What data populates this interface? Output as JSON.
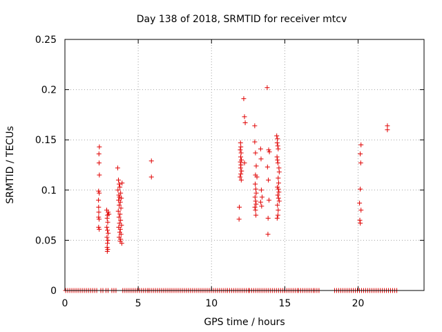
{
  "chart_data": {
    "type": "scatter",
    "title": "Day 138 of 2018, SRMTID for receiver mtcv",
    "xlabel": "GPS time / hours",
    "ylabel": "SRMTID / TECUs",
    "xlim": [
      0,
      24.5
    ],
    "ylim": [
      0,
      0.25
    ],
    "xticks": [
      0,
      5,
      10,
      15,
      20
    ],
    "xtick_labels": [
      "0",
      "5",
      "10",
      "15",
      "20"
    ],
    "yticks": [
      0,
      0.05,
      0.1,
      0.15,
      0.2,
      0.25
    ],
    "ytick_labels": [
      "0",
      "0.05",
      "0.1",
      "0.15",
      "0.2",
      "0.25"
    ],
    "grid": true,
    "marker": "+",
    "color": "#e00000",
    "baseline_segments": [
      [
        0.05,
        2.25
      ],
      [
        2.45,
        2.65
      ],
      [
        2.8,
        3.05
      ],
      [
        3.2,
        3.55
      ],
      [
        3.95,
        5.75
      ],
      [
        5.75,
        7.2
      ],
      [
        7.3,
        11.1
      ],
      [
        11.1,
        12.6
      ],
      [
        12.6,
        13.3
      ],
      [
        13.3,
        15.0
      ],
      [
        15.0,
        15.95
      ],
      [
        15.95,
        17.0
      ],
      [
        17.05,
        17.35
      ],
      [
        18.4,
        22.7
      ]
    ],
    "points": [
      {
        "x": 2.32,
        "y": 0.136
      },
      {
        "x": 2.33,
        "y": 0.127
      },
      {
        "x": 2.35,
        "y": 0.143
      },
      {
        "x": 2.35,
        "y": 0.115
      },
      {
        "x": 2.3,
        "y": 0.099
      },
      {
        "x": 2.34,
        "y": 0.097
      },
      {
        "x": 2.29,
        "y": 0.09
      },
      {
        "x": 2.3,
        "y": 0.083
      },
      {
        "x": 2.31,
        "y": 0.078
      },
      {
        "x": 2.3,
        "y": 0.073
      },
      {
        "x": 2.33,
        "y": 0.071
      },
      {
        "x": 2.3,
        "y": 0.063
      },
      {
        "x": 2.34,
        "y": 0.061
      },
      {
        "x": 2.85,
        "y": 0.08
      },
      {
        "x": 2.95,
        "y": 0.078
      },
      {
        "x": 2.9,
        "y": 0.075
      },
      {
        "x": 2.88,
        "y": 0.072
      },
      {
        "x": 2.92,
        "y": 0.068
      },
      {
        "x": 2.86,
        "y": 0.063
      },
      {
        "x": 2.9,
        "y": 0.06
      },
      {
        "x": 2.95,
        "y": 0.057
      },
      {
        "x": 2.87,
        "y": 0.053
      },
      {
        "x": 2.93,
        "y": 0.05
      },
      {
        "x": 2.9,
        "y": 0.047
      },
      {
        "x": 2.88,
        "y": 0.043
      },
      {
        "x": 2.92,
        "y": 0.041
      },
      {
        "x": 2.89,
        "y": 0.039
      },
      {
        "x": 3.0,
        "y": 0.076
      },
      {
        "x": 3.6,
        "y": 0.122
      },
      {
        "x": 3.65,
        "y": 0.11
      },
      {
        "x": 3.7,
        "y": 0.106
      },
      {
        "x": 3.9,
        "y": 0.107
      },
      {
        "x": 3.75,
        "y": 0.103
      },
      {
        "x": 3.62,
        "y": 0.1
      },
      {
        "x": 3.8,
        "y": 0.097
      },
      {
        "x": 3.68,
        "y": 0.095
      },
      {
        "x": 3.72,
        "y": 0.093
      },
      {
        "x": 3.85,
        "y": 0.092
      },
      {
        "x": 3.66,
        "y": 0.09
      },
      {
        "x": 3.78,
        "y": 0.088
      },
      {
        "x": 3.7,
        "y": 0.085
      },
      {
        "x": 3.82,
        "y": 0.082
      },
      {
        "x": 3.64,
        "y": 0.079
      },
      {
        "x": 3.76,
        "y": 0.076
      },
      {
        "x": 3.69,
        "y": 0.073
      },
      {
        "x": 3.8,
        "y": 0.07
      },
      {
        "x": 3.72,
        "y": 0.067
      },
      {
        "x": 3.86,
        "y": 0.065
      },
      {
        "x": 3.67,
        "y": 0.063
      },
      {
        "x": 3.78,
        "y": 0.061
      },
      {
        "x": 3.74,
        "y": 0.058
      },
      {
        "x": 3.83,
        "y": 0.056
      },
      {
        "x": 3.7,
        "y": 0.053
      },
      {
        "x": 3.8,
        "y": 0.051
      },
      {
        "x": 3.77,
        "y": 0.049
      },
      {
        "x": 3.88,
        "y": 0.047
      },
      {
        "x": 5.9,
        "y": 0.129
      },
      {
        "x": 5.9,
        "y": 0.113
      },
      {
        "x": 11.98,
        "y": 0.147
      },
      {
        "x": 12.0,
        "y": 0.143
      },
      {
        "x": 11.96,
        "y": 0.14
      },
      {
        "x": 12.02,
        "y": 0.137
      },
      {
        "x": 11.99,
        "y": 0.133
      },
      {
        "x": 12.04,
        "y": 0.13
      },
      {
        "x": 11.97,
        "y": 0.128
      },
      {
        "x": 12.25,
        "y": 0.127
      },
      {
        "x": 12.01,
        "y": 0.125
      },
      {
        "x": 11.98,
        "y": 0.122
      },
      {
        "x": 12.05,
        "y": 0.119
      },
      {
        "x": 12.0,
        "y": 0.116
      },
      {
        "x": 11.95,
        "y": 0.113
      },
      {
        "x": 12.03,
        "y": 0.11
      },
      {
        "x": 11.9,
        "y": 0.083
      },
      {
        "x": 11.88,
        "y": 0.071
      },
      {
        "x": 12.2,
        "y": 0.191
      },
      {
        "x": 12.25,
        "y": 0.173
      },
      {
        "x": 12.3,
        "y": 0.167
      },
      {
        "x": 12.95,
        "y": 0.164
      },
      {
        "x": 12.95,
        "y": 0.148
      },
      {
        "x": 13.0,
        "y": 0.137
      },
      {
        "x": 13.05,
        "y": 0.124
      },
      {
        "x": 13.0,
        "y": 0.115
      },
      {
        "x": 12.98,
        "y": 0.106
      },
      {
        "x": 13.02,
        "y": 0.101
      },
      {
        "x": 13.05,
        "y": 0.097
      },
      {
        "x": 12.97,
        "y": 0.093
      },
      {
        "x": 13.01,
        "y": 0.089
      },
      {
        "x": 13.04,
        "y": 0.086
      },
      {
        "x": 12.96,
        "y": 0.083
      },
      {
        "x": 13.0,
        "y": 0.08
      },
      {
        "x": 13.03,
        "y": 0.075
      },
      {
        "x": 13.1,
        "y": 0.113
      },
      {
        "x": 13.35,
        "y": 0.141
      },
      {
        "x": 13.38,
        "y": 0.131
      },
      {
        "x": 13.4,
        "y": 0.1
      },
      {
        "x": 13.45,
        "y": 0.093
      },
      {
        "x": 13.35,
        "y": 0.088
      },
      {
        "x": 13.42,
        "y": 0.084
      },
      {
        "x": 13.8,
        "y": 0.202
      },
      {
        "x": 13.85,
        "y": 0.056
      },
      {
        "x": 13.9,
        "y": 0.14
      },
      {
        "x": 13.95,
        "y": 0.138
      },
      {
        "x": 13.82,
        "y": 0.123
      },
      {
        "x": 13.88,
        "y": 0.11
      },
      {
        "x": 13.92,
        "y": 0.09
      },
      {
        "x": 13.86,
        "y": 0.072
      },
      {
        "x": 14.45,
        "y": 0.154
      },
      {
        "x": 14.5,
        "y": 0.151
      },
      {
        "x": 14.48,
        "y": 0.147
      },
      {
        "x": 14.52,
        "y": 0.144
      },
      {
        "x": 14.55,
        "y": 0.141
      },
      {
        "x": 14.47,
        "y": 0.133
      },
      {
        "x": 14.5,
        "y": 0.13
      },
      {
        "x": 14.53,
        "y": 0.127
      },
      {
        "x": 14.6,
        "y": 0.122
      },
      {
        "x": 14.62,
        "y": 0.118
      },
      {
        "x": 14.55,
        "y": 0.112
      },
      {
        "x": 14.58,
        "y": 0.107
      },
      {
        "x": 14.5,
        "y": 0.103
      },
      {
        "x": 14.56,
        "y": 0.101
      },
      {
        "x": 14.6,
        "y": 0.098
      },
      {
        "x": 14.52,
        "y": 0.095
      },
      {
        "x": 14.57,
        "y": 0.092
      },
      {
        "x": 14.62,
        "y": 0.089
      },
      {
        "x": 14.5,
        "y": 0.085
      },
      {
        "x": 14.55,
        "y": 0.08
      },
      {
        "x": 14.53,
        "y": 0.075
      },
      {
        "x": 14.48,
        "y": 0.072
      },
      {
        "x": 20.2,
        "y": 0.145
      },
      {
        "x": 20.15,
        "y": 0.136
      },
      {
        "x": 20.18,
        "y": 0.127
      },
      {
        "x": 20.15,
        "y": 0.101
      },
      {
        "x": 20.1,
        "y": 0.087
      },
      {
        "x": 20.2,
        "y": 0.08
      },
      {
        "x": 20.12,
        "y": 0.07
      },
      {
        "x": 20.15,
        "y": 0.067
      },
      {
        "x": 22.0,
        "y": 0.164
      },
      {
        "x": 22.0,
        "y": 0.16
      }
    ]
  }
}
